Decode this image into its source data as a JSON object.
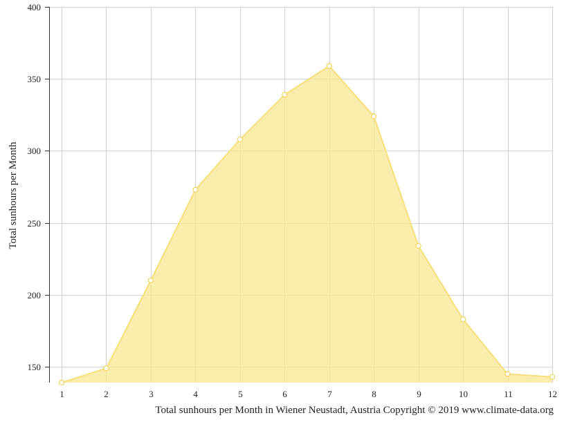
{
  "chart_data": {
    "type": "area",
    "title": "",
    "xlabel": "",
    "ylabel": "Total sunhours per Month",
    "caption": "Total sunhours per Month in Wiener Neustadt, Austria Copyright © 2019 www.climate-data.org",
    "x": [
      1,
      2,
      3,
      4,
      5,
      6,
      7,
      8,
      9,
      10,
      11,
      12
    ],
    "x_tick_labels": [
      "1",
      "2",
      "3",
      "4",
      "5",
      "6",
      "7",
      "8",
      "9",
      "10",
      "11",
      "12"
    ],
    "y_tick_labels": [
      "150",
      "200",
      "250",
      "300",
      "350",
      "400"
    ],
    "y_ticks": [
      150,
      200,
      250,
      300,
      350,
      400
    ],
    "xlim": [
      1,
      12
    ],
    "ylim": [
      139,
      400
    ],
    "grid": true,
    "legend": "none",
    "series": [
      {
        "values": [
          139,
          149,
          210,
          273,
          308,
          339,
          359,
          324,
          234,
          183,
          145,
          143
        ]
      }
    ],
    "colors": {
      "fill": "#f8e68e",
      "line": "#f6df7c",
      "marker_fill": "#ffffff",
      "marker_stroke": "#f2d45a"
    }
  }
}
